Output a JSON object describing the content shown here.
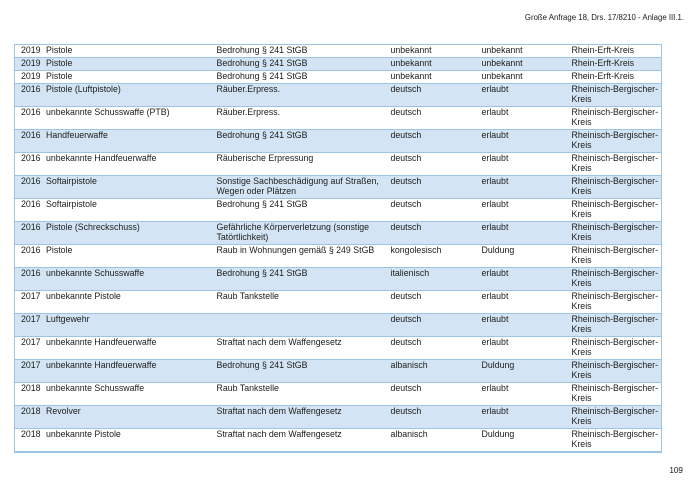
{
  "header": {
    "reference": "Große Anfrage 18, Drs. 17/8210 - Anlage III.1."
  },
  "footer": {
    "page_number": "109"
  },
  "style": {
    "band_color": "#d3e5f4",
    "border_color": "#9fc3e3"
  },
  "table": {
    "rows": [
      {
        "year": "2019",
        "weapon": "Pistole",
        "offense": "Bedrohung § 241 StGB",
        "nationality": "unbekannt",
        "status": "unbekannt",
        "district": "Rhein-Erft-Kreis"
      },
      {
        "year": "2019",
        "weapon": "Pistole",
        "offense": "Bedrohung § 241 StGB",
        "nationality": "unbekannt",
        "status": "unbekannt",
        "district": "Rhein-Erft-Kreis"
      },
      {
        "year": "2019",
        "weapon": "Pistole",
        "offense": "Bedrohung § 241 StGB",
        "nationality": "unbekannt",
        "status": "unbekannt",
        "district": "Rhein-Erft-Kreis"
      },
      {
        "year": "2016",
        "weapon": "Pistole (Luftpistole)",
        "offense": "Räuber.Erpress.",
        "nationality": "deutsch",
        "status": "erlaubt",
        "district": "Rheinisch-Bergischer-Kreis"
      },
      {
        "year": "2016",
        "weapon": "unbekannte Schusswaffe (PTB)",
        "offense": "Räuber.Erpress.",
        "nationality": "deutsch",
        "status": "erlaubt",
        "district": "Rheinisch-Bergischer-Kreis"
      },
      {
        "year": "2016",
        "weapon": "Handfeuerwaffe",
        "offense": "Bedrohung § 241 StGB",
        "nationality": "deutsch",
        "status": "erlaubt",
        "district": "Rheinisch-Bergischer-Kreis"
      },
      {
        "year": "2016",
        "weapon": "unbekannte Handfeuerwaffe",
        "offense": "Räuberische Erpressung",
        "nationality": "deutsch",
        "status": "erlaubt",
        "district": "Rheinisch-Bergischer-Kreis"
      },
      {
        "year": "2016",
        "weapon": "Softairpistole",
        "offense": "Sonstige Sachbeschädigung auf Straßen, Wegen oder Plätzen",
        "nationality": "deutsch",
        "status": "erlaubt",
        "district": "Rheinisch-Bergischer-Kreis"
      },
      {
        "year": "2016",
        "weapon": "Softairpistole",
        "offense": "Bedrohung § 241 StGB",
        "nationality": "deutsch",
        "status": "erlaubt",
        "district": "Rheinisch-Bergischer-Kreis"
      },
      {
        "year": "2016",
        "weapon": "Pistole (Schreckschuss)",
        "offense": "Gefährliche Körperverletzung (sonstige Tatörtlichkeit)",
        "nationality": "deutsch",
        "status": "erlaubt",
        "district": "Rheinisch-Bergischer-Kreis"
      },
      {
        "year": "2016",
        "weapon": "Pistole",
        "offense": "Raub in Wohnungen gemäß § 249 StGB",
        "nationality": "kongolesisch",
        "status": "Duldung",
        "district": "Rheinisch-Bergischer-Kreis"
      },
      {
        "year": "2016",
        "weapon": "unbekannte Schusswaffe",
        "offense": "Bedrohung § 241 StGB",
        "nationality": "italienisch",
        "status": "erlaubt",
        "district": "Rheinisch-Bergischer-Kreis"
      },
      {
        "year": "2017",
        "weapon": "unbekannte Pistole",
        "offense": "Raub Tankstelle",
        "nationality": "deutsch",
        "status": "erlaubt",
        "district": "Rheinisch-Bergischer-Kreis"
      },
      {
        "year": "2017",
        "weapon": "Luftgewehr",
        "offense": "",
        "nationality": "deutsch",
        "status": "erlaubt",
        "district": "Rheinisch-Bergischer-Kreis"
      },
      {
        "year": "2017",
        "weapon": "unbekannte Handfeuerwaffe",
        "offense": "Straftat nach dem Waffengesetz",
        "nationality": "deutsch",
        "status": "erlaubt",
        "district": "Rheinisch-Bergischer-Kreis"
      },
      {
        "year": "2017",
        "weapon": "unbekannte Handfeuerwaffe",
        "offense": "Bedrohung § 241 StGB",
        "nationality": "albanisch",
        "status": "Duldung",
        "district": "Rheinisch-Bergischer-Kreis"
      },
      {
        "year": "2018",
        "weapon": "unbekannte Schusswaffe",
        "offense": "Raub Tankstelle",
        "nationality": "deutsch",
        "status": "erlaubt",
        "district": "Rheinisch-Bergischer-Kreis"
      },
      {
        "year": "2018",
        "weapon": "Revolver",
        "offense": "Straftat nach dem Waffengesetz",
        "nationality": "deutsch",
        "status": "erlaubt",
        "district": "Rheinisch-Bergischer-Kreis"
      },
      {
        "year": "2018",
        "weapon": "unbekannte Pistole",
        "offense": "Straftat nach dem Waffengesetz",
        "nationality": "albanisch",
        "status": "Duldung",
        "district": "Rheinisch-Bergischer-Kreis"
      }
    ]
  }
}
